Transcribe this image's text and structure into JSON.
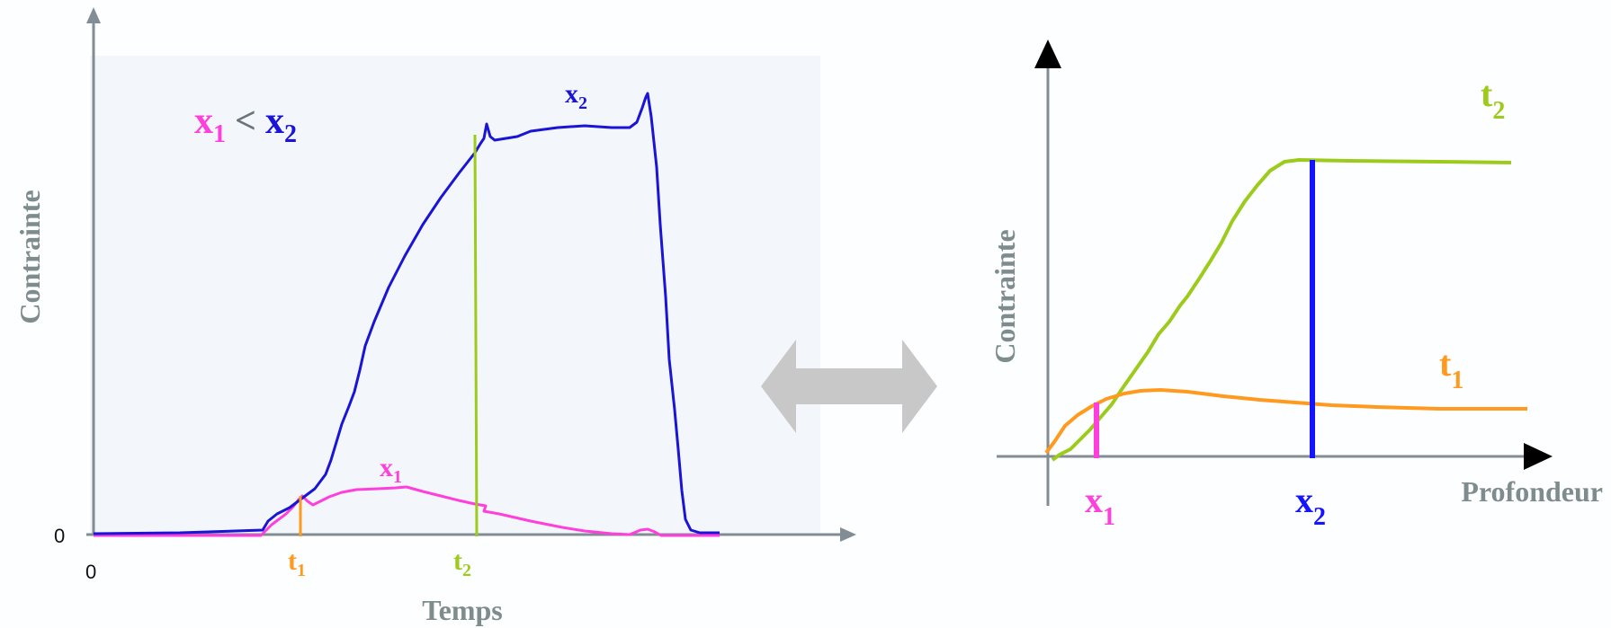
{
  "colors": {
    "axis": "#828c94",
    "panel": "#f2f6fa",
    "x1": "#ff3fdc",
    "x2": "#1a14d6",
    "x2_marker": "#1414ff",
    "t1": "#ff9a1f",
    "t2": "#9ccb1c",
    "arrow": "#c8c8c8",
    "axis_label": "#7f8c8d",
    "black": "#000000"
  },
  "left": {
    "ylabel": "Contrainte",
    "xlabel": "Temps",
    "origin_y": "0",
    "origin_x": "0",
    "relation": {
      "a": "x",
      "a_sub": "1",
      "op": "<",
      "b": "x",
      "b_sub": "2"
    },
    "curve_labels": {
      "x1": {
        "base": "x",
        "sub": "1"
      },
      "x2": {
        "base": "x",
        "sub": "2"
      }
    },
    "markers": {
      "t1": {
        "base": "t",
        "sub": "1"
      },
      "t2": {
        "base": "t",
        "sub": "2"
      }
    }
  },
  "center": {
    "symbol": "double-arrow-icon"
  },
  "right": {
    "ylabel": "Contrainte",
    "xlabel": "Profondeur",
    "curve_labels": {
      "t1": {
        "base": "t",
        "sub": "1"
      },
      "t2": {
        "base": "t",
        "sub": "2"
      }
    },
    "markers": {
      "x1": {
        "base": "x",
        "sub": "1"
      },
      "x2": {
        "base": "x",
        "sub": "2"
      }
    }
  }
}
